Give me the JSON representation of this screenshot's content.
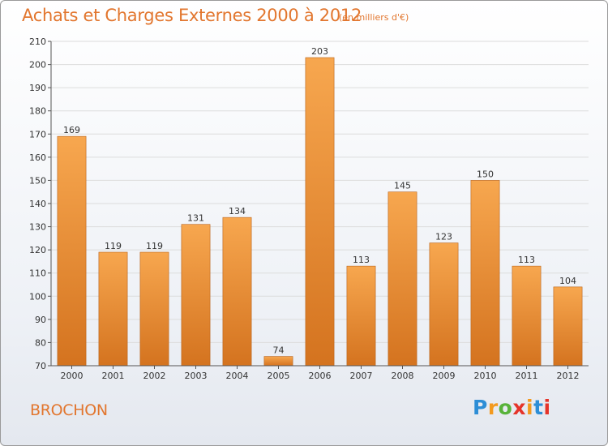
{
  "header": {
    "title": "Achats et Charges Externes 2000 à 2012",
    "unit": "(en milliers d'€)"
  },
  "footer": {
    "commune": "BROCHON",
    "logo_letters": [
      "P",
      "r",
      "o",
      "x",
      "i",
      "t",
      "i"
    ],
    "logo_colors": [
      "#2d8ed6",
      "#f39a1e",
      "#58b33a",
      "#e5342a",
      "#f39a1e",
      "#2d8ed6",
      "#e5342a"
    ]
  },
  "colors": {
    "bar_top": "#f7a74f",
    "bar_bottom": "#d4731f",
    "bar_edge": "#b9621a",
    "grid": "#dcdcdc",
    "axis": "#555555"
  },
  "chart_data": {
    "type": "bar",
    "categories": [
      "2000",
      "2001",
      "2002",
      "2003",
      "2004",
      "2005",
      "2006",
      "2007",
      "2008",
      "2009",
      "2010",
      "2011",
      "2012"
    ],
    "values": [
      169,
      119,
      119,
      131,
      134,
      74,
      203,
      113,
      145,
      123,
      150,
      113,
      104
    ],
    "title": "Achats et Charges Externes 2000 à 2012",
    "xlabel": "",
    "ylabel": "",
    "ylim": [
      70,
      210
    ],
    "yticks": [
      70,
      80,
      90,
      100,
      110,
      120,
      130,
      140,
      150,
      160,
      170,
      180,
      190,
      200,
      210
    ],
    "grid": true,
    "legend": "none"
  }
}
